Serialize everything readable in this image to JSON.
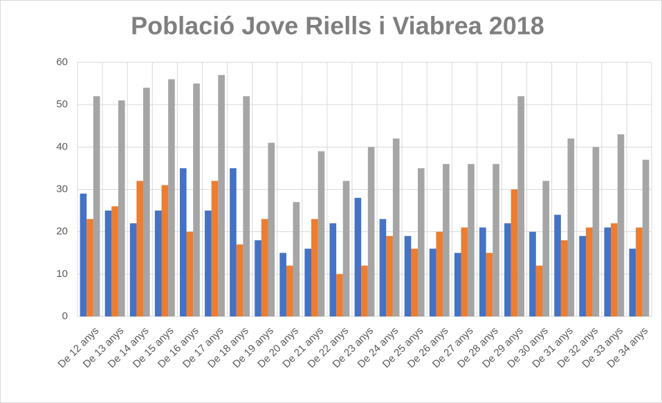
{
  "chart_data": {
    "type": "bar",
    "title": "Població Jove Riells i Viabrea 2018",
    "categories": [
      "De 12 anys",
      "De 13 anys",
      "De 14 anys",
      "De 15 anys",
      "De 16 anys",
      "De 17 anys",
      "De 18 anys",
      "De 19 anys",
      "De 20 anys",
      "De 21 anys",
      "De 22 anys",
      "De 23 anys",
      "De 24 anys",
      "De 25 anys",
      "De 26 anys",
      "De 27 anys",
      "De 28 anys",
      "De 29 anys",
      "De 30 anys",
      "De 31 anys",
      "De 32 anys",
      "De 33 anys",
      "De 34 anys"
    ],
    "series": [
      {
        "color": "#4472c4",
        "values": [
          29,
          25,
          22,
          25,
          35,
          25,
          35,
          18,
          15,
          16,
          22,
          28,
          23,
          19,
          16,
          15,
          21,
          22,
          20,
          24,
          19,
          21,
          16
        ]
      },
      {
        "color": "#ed7d31",
        "values": [
          23,
          26,
          32,
          31,
          20,
          32,
          17,
          23,
          12,
          23,
          10,
          12,
          19,
          16,
          20,
          21,
          15,
          30,
          12,
          18,
          21,
          22,
          21
        ]
      },
      {
        "color": "#a5a5a5",
        "values": [
          52,
          51,
          54,
          56,
          55,
          57,
          52,
          41,
          27,
          39,
          32,
          40,
          42,
          35,
          36,
          36,
          36,
          52,
          32,
          42,
          40,
          43,
          37
        ]
      }
    ],
    "ylim": [
      0,
      60
    ],
    "yticks": [
      0,
      10,
      20,
      30,
      40,
      50,
      60
    ],
    "grid": true
  }
}
